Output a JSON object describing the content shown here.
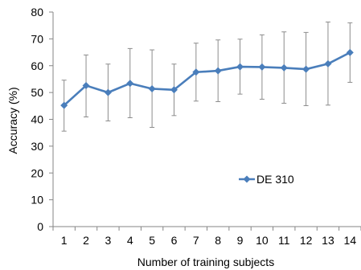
{
  "chart_data": {
    "type": "line",
    "xlabel": "Number of training subjects",
    "ylabel": "Accuracy (%)",
    "ylim": [
      0,
      80
    ],
    "yticks": [
      0,
      10,
      20,
      30,
      40,
      50,
      60,
      70,
      80
    ],
    "x": [
      1,
      2,
      3,
      4,
      5,
      6,
      7,
      8,
      9,
      10,
      11,
      12,
      13,
      14
    ],
    "grid": false,
    "legend_position": "center-right",
    "series": [
      {
        "name": "DE 310",
        "color": "#4a7ebb",
        "values": [
          45.2,
          52.6,
          50.0,
          53.4,
          51.4,
          51.0,
          57.6,
          58.1,
          59.6,
          59.5,
          59.2,
          58.7,
          60.7,
          64.9
        ],
        "err_upper": [
          54.6,
          64.0,
          60.6,
          66.4,
          65.9,
          60.6,
          68.4,
          69.6,
          69.9,
          71.5,
          72.6,
          72.4,
          76.3,
          76.0
        ],
        "err_lower": [
          35.6,
          40.9,
          39.4,
          40.6,
          37.0,
          41.4,
          46.8,
          46.6,
          49.4,
          47.5,
          46.0,
          45.1,
          45.3,
          53.8
        ]
      }
    ]
  }
}
